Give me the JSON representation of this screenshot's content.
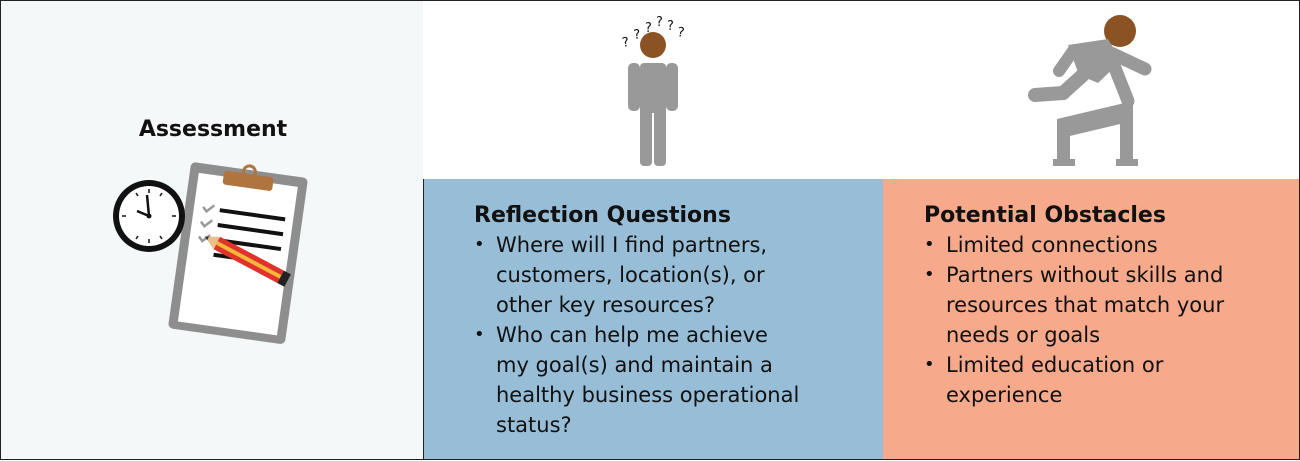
{
  "assessment": {
    "title": "Assessment"
  },
  "reflection": {
    "title": "Reflection Questions",
    "items": [
      "Where will I find partners,\ncustomers, location(s), or\nother key resources?",
      "Who can help me achieve\nmy goal(s) and maintain a\nhealthy business operational\nstatus?"
    ]
  },
  "obstacles": {
    "title": "Potential Obstacles",
    "items": [
      "Limited connections",
      "Partners without skills and\nresources that match your\nneeds or goals",
      "Limited education or\nexperience"
    ]
  },
  "colors": {
    "reflection_bg": "#98bdd7",
    "obstacles_bg": "#f6a98b",
    "figure_gray": "#999999",
    "head_brown": "#8b5323",
    "pencil_red": "#e0322a",
    "pencil_yellow": "#f4b63b"
  },
  "icons": {
    "assessment": "clipboard-clock-pencil-icon",
    "reflection": "confused-person-icon",
    "obstacles": "hurdle-jumper-icon"
  }
}
